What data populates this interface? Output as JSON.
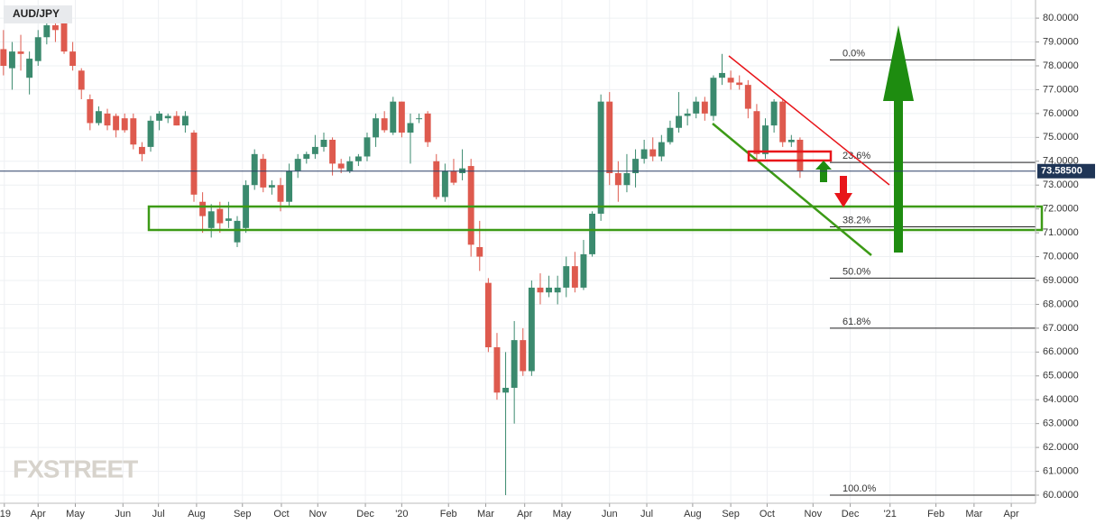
{
  "chart_data": {
    "type": "candlestick",
    "title": "AUD/JPY",
    "watermark": "FXSTREET",
    "up_color": "#3b8a6e",
    "down_color": "#de5a4e",
    "open": [
      78.7,
      77.9,
      78.6,
      77.5,
      78.2,
      79.2,
      79.7,
      80.0,
      78.6,
      77.8,
      76.6,
      75.6,
      76.0,
      75.9,
      75.8,
      75.8,
      74.6,
      74.6,
      75.7,
      75.8,
      75.9,
      75.5,
      75.2,
      72.3,
      71.2,
      72.0,
      71.5,
      70.6,
      71.2,
      73.0,
      74.1,
      72.9,
      73.0,
      72.3,
      73.6,
      74.1,
      74.3,
      74.6,
      74.9,
      73.9,
      73.6,
      74.0,
      74.2,
      75.0,
      75.8,
      75.2,
      76.5,
      75.2,
      75.8,
      76.0,
      74.0,
      72.5,
      73.6,
      73.5,
      73.8,
      70.4,
      68.9,
      66.2,
      64.3,
      64.5,
      66.5,
      65.2,
      68.7,
      68.5,
      68.5,
      68.7,
      69.6,
      68.7,
      70.1,
      71.8,
      76.5,
      73.5,
      73.0,
      73.5,
      74.1,
      74.5,
      74.2,
      74.8,
      75.4,
      75.9,
      76.0,
      76.5,
      75.9,
      77.5,
      77.5,
      77.3,
      77.2,
      76.1,
      74.3,
      75.5,
      76.5,
      74.8,
      74.9
    ],
    "high": [
      79.5,
      79.0,
      79.3,
      78.6,
      79.5,
      80.0,
      80.3,
      80.5,
      79.0,
      77.9,
      76.8,
      76.3,
      76.2,
      76.0,
      76.0,
      76.0,
      74.8,
      75.9,
      76.1,
      76.0,
      76.1,
      76.1,
      75.3,
      72.7,
      72.2,
      72.3,
      72.3,
      71.7,
      73.2,
      74.5,
      74.3,
      73.2,
      73.3,
      73.9,
      74.3,
      74.4,
      75.1,
      75.2,
      75.0,
      74.1,
      74.2,
      74.3,
      75.2,
      76.0,
      76.1,
      76.7,
      76.5,
      76.0,
      76.0,
      76.1,
      74.3,
      73.9,
      74.1,
      74.5,
      74.1,
      71.5,
      69.1,
      66.8,
      66.0,
      67.3,
      67.0,
      69.0,
      69.3,
      69.2,
      69.2,
      70.0,
      70.2,
      70.7,
      71.9,
      76.8,
      76.9,
      74.0,
      74.3,
      74.5,
      74.9,
      75.0,
      75.1,
      75.7,
      76.9,
      76.2,
      76.7,
      76.7,
      77.6,
      78.5,
      77.8,
      77.6,
      77.4,
      76.4,
      75.8,
      76.6,
      76.6,
      75.1,
      75.0
    ],
    "low": [
      77.6,
      77.0,
      77.8,
      76.8,
      78.0,
      78.9,
      79.0,
      78.5,
      77.8,
      76.6,
      75.3,
      75.5,
      75.3,
      75.0,
      75.2,
      74.5,
      74.0,
      74.4,
      75.3,
      75.6,
      75.5,
      75.2,
      72.3,
      71.0,
      70.8,
      71.0,
      71.2,
      70.4,
      71.0,
      72.8,
      72.7,
      72.6,
      71.9,
      72.1,
      73.3,
      73.9,
      74.1,
      74.4,
      73.4,
      73.5,
      73.5,
      73.8,
      74.0,
      74.6,
      75.2,
      75.1,
      75.0,
      73.9,
      75.6,
      74.6,
      72.4,
      72.3,
      73.0,
      73.2,
      70.0,
      69.4,
      66.0,
      64.0,
      60.0,
      63.0,
      65.0,
      65.0,
      68.0,
      68.3,
      68.0,
      68.3,
      68.5,
      68.6,
      70.0,
      71.5,
      73.0,
      72.3,
      72.7,
      72.9,
      73.9,
      74.0,
      74.0,
      74.7,
      75.2,
      75.5,
      75.8,
      75.7,
      75.7,
      77.2,
      77.0,
      77.0,
      75.8,
      74.0,
      74.1,
      75.2,
      74.6,
      74.6,
      73.3
    ],
    "close": [
      78.0,
      78.6,
      78.5,
      78.3,
      79.2,
      79.7,
      79.5,
      78.6,
      78.0,
      77.0,
      75.6,
      76.1,
      75.5,
      75.3,
      75.3,
      74.7,
      74.3,
      75.7,
      76.0,
      75.9,
      75.5,
      75.9,
      72.6,
      71.7,
      71.9,
      71.4,
      71.6,
      71.5,
      73.0,
      74.3,
      72.9,
      73.0,
      72.3,
      73.6,
      74.1,
      74.3,
      74.6,
      74.9,
      73.9,
      73.7,
      74.0,
      74.2,
      75.0,
      75.8,
      75.3,
      76.5,
      75.2,
      75.6,
      75.8,
      74.8,
      72.5,
      73.6,
      73.1,
      73.7,
      70.5,
      70.0,
      66.2,
      64.3,
      64.5,
      66.5,
      65.2,
      68.7,
      68.5,
      68.7,
      68.7,
      69.6,
      68.7,
      70.1,
      71.8,
      76.5,
      73.5,
      73.0,
      73.5,
      74.1,
      74.5,
      74.2,
      74.8,
      75.4,
      75.9,
      76.0,
      76.5,
      76.0,
      77.5,
      77.7,
      77.3,
      77.2,
      76.2,
      74.3,
      75.5,
      76.5,
      74.8,
      74.9,
      73.6
    ],
    "last_price": {
      "value": 73.585,
      "label": "73.58500"
    },
    "fib_levels": [
      {
        "value": 78.25,
        "label": "0.0%"
      },
      {
        "value": 73.95,
        "label": "23.6%"
      },
      {
        "value": 71.25,
        "label": "38.2%"
      },
      {
        "value": 69.1,
        "label": "50.0%"
      },
      {
        "value": 67.0,
        "label": "61.8%"
      },
      {
        "value": 60.0,
        "label": "100.0%"
      }
    ],
    "xlim": [
      -0.4,
      119.2
    ],
    "xticks": [
      {
        "value": 0.1,
        "label": "'19"
      },
      {
        "value": 4.0,
        "label": "Apr"
      },
      {
        "value": 8.3,
        "label": "May"
      },
      {
        "value": 13.8,
        "label": "Jun"
      },
      {
        "value": 17.9,
        "label": "Jul"
      },
      {
        "value": 22.3,
        "label": "Aug"
      },
      {
        "value": 27.6,
        "label": "Sep"
      },
      {
        "value": 32.1,
        "label": "Oct"
      },
      {
        "value": 36.3,
        "label": "Nov"
      },
      {
        "value": 41.8,
        "label": "Dec"
      },
      {
        "value": 46.0,
        "label": "'20"
      },
      {
        "value": 51.4,
        "label": "Feb"
      },
      {
        "value": 55.7,
        "label": "Mar"
      },
      {
        "value": 60.2,
        "label": "Apr"
      },
      {
        "value": 64.5,
        "label": "May"
      },
      {
        "value": 70.0,
        "label": "Jun"
      },
      {
        "value": 74.3,
        "label": "Jul"
      },
      {
        "value": 79.6,
        "label": "Aug"
      },
      {
        "value": 84.0,
        "label": "Sep"
      },
      {
        "value": 88.2,
        "label": "Oct"
      },
      {
        "value": 93.5,
        "label": "Nov"
      },
      {
        "value": 97.8,
        "label": "Dec"
      },
      {
        "value": 102.4,
        "label": "'21"
      },
      {
        "value": 107.7,
        "label": "Feb"
      },
      {
        "value": 112.1,
        "label": "Mar"
      },
      {
        "value": 116.4,
        "label": "Apr"
      }
    ],
    "ylim": [
      59.66,
      80.76
    ],
    "yticks": [
      {
        "value": 60,
        "label": "60.0000"
      },
      {
        "value": 61,
        "label": "61.0000"
      },
      {
        "value": 62,
        "label": "62.0000"
      },
      {
        "value": 63,
        "label": "63.0000"
      },
      {
        "value": 64,
        "label": "64.0000"
      },
      {
        "value": 65,
        "label": "65.0000"
      },
      {
        "value": 66,
        "label": "66.0000"
      },
      {
        "value": 67,
        "label": "67.0000"
      },
      {
        "value": 68,
        "label": "68.0000"
      },
      {
        "value": 69,
        "label": "69.0000"
      },
      {
        "value": 70,
        "label": "70.0000"
      },
      {
        "value": 71,
        "label": "71.0000"
      },
      {
        "value": 72,
        "label": "72.0000"
      },
      {
        "value": 73,
        "label": "73.0000"
      },
      {
        "value": 74,
        "label": "74.0000"
      },
      {
        "value": 75,
        "label": "75.0000"
      },
      {
        "value": 76,
        "label": "76.0000"
      },
      {
        "value": 77,
        "label": "77.0000"
      },
      {
        "value": 78,
        "label": "78.0000"
      },
      {
        "value": 79,
        "label": "79.0000"
      },
      {
        "value": 80,
        "label": "80.0000"
      }
    ],
    "grid": true
  }
}
